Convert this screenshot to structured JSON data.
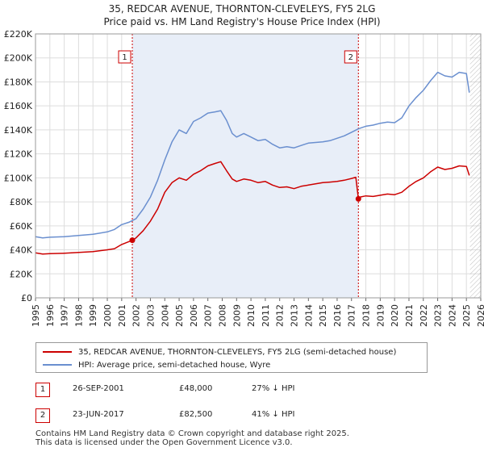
{
  "title": "35, REDCAR AVENUE, THORNTON-CLEVELEYS, FY5 2LG",
  "subtitle": "Price paid vs. HM Land Registry's House Price Index (HPI)",
  "colors": {
    "price": "#cc0000",
    "hpi": "#6a8fcf",
    "shade": "#e8eef8",
    "marker": "#cc0000"
  },
  "chart_data": {
    "type": "line",
    "xlim": [
      1995,
      2026
    ],
    "ylim": [
      0,
      220000
    ],
    "yticks": [
      0,
      20000,
      40000,
      60000,
      80000,
      100000,
      120000,
      140000,
      160000,
      180000,
      200000,
      220000
    ],
    "ytick_labels": [
      "£0",
      "£20K",
      "£40K",
      "£60K",
      "£80K",
      "£100K",
      "£120K",
      "£140K",
      "£160K",
      "£180K",
      "£200K",
      "£220K"
    ],
    "xticks": [
      "1995",
      "1996",
      "1997",
      "1998",
      "1999",
      "2000",
      "2001",
      "2002",
      "2003",
      "2004",
      "2005",
      "2006",
      "2007",
      "2008",
      "2009",
      "2010",
      "2011",
      "2012",
      "2013",
      "2014",
      "2015",
      "2016",
      "2017",
      "2018",
      "2019",
      "2020",
      "2021",
      "2022",
      "2023",
      "2024",
      "2025",
      "2026"
    ],
    "shaded_range": [
      2001.74,
      2017.48
    ],
    "future_hatch_from": 2025.25,
    "series": [
      {
        "name": "35, REDCAR AVENUE, THORNTON-CLEVELEYS, FY5 2LG (semi-detached house)",
        "color": "#cc0000",
        "x": [
          1995,
          1995.5,
          1996,
          1997,
          1998,
          1999,
          2000,
          2000.5,
          2001,
          2001.74,
          2002,
          2002.5,
          2003,
          2003.5,
          2004,
          2004.5,
          2005,
          2005.5,
          2006,
          2006.5,
          2007,
          2007.5,
          2007.9,
          2008.3,
          2008.7,
          2009,
          2009.5,
          2010,
          2010.5,
          2011,
          2011.5,
          2012,
          2012.5,
          2013,
          2013.5,
          2014,
          2014.5,
          2015,
          2015.5,
          2016,
          2016.5,
          2017,
          2017.3,
          2017.48,
          2017.6,
          2018,
          2018.5,
          2019,
          2019.5,
          2020,
          2020.5,
          2021,
          2021.5,
          2022,
          2022.5,
          2023,
          2023.5,
          2024,
          2024.5,
          2025,
          2025.2
        ],
        "values": [
          37500,
          36500,
          36800,
          37200,
          37800,
          38500,
          40000,
          41000,
          44500,
          48000,
          50000,
          56000,
          64000,
          74000,
          88000,
          96000,
          100000,
          98000,
          103000,
          106000,
          110000,
          112000,
          113500,
          106000,
          99000,
          97000,
          99000,
          98000,
          96000,
          97000,
          94000,
          92000,
          92500,
          91000,
          93000,
          94000,
          95000,
          96000,
          96500,
          97000,
          98000,
          99500,
          100500,
          82500,
          84000,
          85000,
          84500,
          85500,
          86500,
          86000,
          88000,
          93000,
          97000,
          100000,
          105000,
          109000,
          107000,
          108000,
          110000,
          109500,
          102000
        ]
      },
      {
        "name": "HPI: Average price, semi-detached house, Wyre",
        "color": "#6a8fcf",
        "x": [
          1995,
          1995.5,
          1996,
          1997,
          1998,
          1999,
          2000,
          2000.5,
          2001,
          2001.5,
          2002,
          2002.5,
          2003,
          2003.5,
          2004,
          2004.5,
          2005,
          2005.5,
          2006,
          2006.5,
          2007,
          2007.5,
          2007.9,
          2008.3,
          2008.7,
          2009,
          2009.5,
          2010,
          2010.5,
          2011,
          2011.5,
          2012,
          2012.5,
          2013,
          2013.5,
          2014,
          2014.5,
          2015,
          2015.5,
          2016,
          2016.5,
          2017,
          2017.5,
          2018,
          2018.5,
          2019,
          2019.5,
          2020,
          2020.5,
          2021,
          2021.5,
          2022,
          2022.5,
          2023,
          2023.5,
          2024,
          2024.5,
          2025,
          2025.2
        ],
        "values": [
          51000,
          50000,
          50500,
          51000,
          52000,
          53000,
          55000,
          57000,
          61000,
          63000,
          66000,
          74000,
          84000,
          98000,
          115000,
          130000,
          140000,
          137000,
          147000,
          150000,
          154000,
          155000,
          156000,
          148000,
          137000,
          134000,
          137000,
          134000,
          131000,
          132000,
          128000,
          125000,
          126000,
          125000,
          127000,
          129000,
          129500,
          130000,
          131000,
          133000,
          135000,
          138000,
          141000,
          143000,
          144000,
          145500,
          146500,
          146000,
          150000,
          160000,
          167000,
          173000,
          181000,
          188000,
          185000,
          184000,
          188000,
          187000,
          171000
        ]
      }
    ],
    "markers": [
      {
        "label": "1",
        "x": 2001.74,
        "y": 48000
      },
      {
        "label": "2",
        "x": 2017.48,
        "y": 82500
      }
    ]
  },
  "legend": {
    "price_label": "35, REDCAR AVENUE, THORNTON-CLEVELEYS, FY5 2LG (semi-detached house)",
    "hpi_label": "HPI: Average price, semi-detached house, Wyre"
  },
  "transactions": [
    {
      "num": "1",
      "date": "26-SEP-2001",
      "price": "£48,000",
      "hpi": "27% ↓ HPI"
    },
    {
      "num": "2",
      "date": "23-JUN-2017",
      "price": "£82,500",
      "hpi": "41% ↓ HPI"
    }
  ],
  "footer": {
    "line1": "Contains HM Land Registry data © Crown copyright and database right 2025.",
    "line2": "This data is licensed under the Open Government Licence v3.0."
  }
}
